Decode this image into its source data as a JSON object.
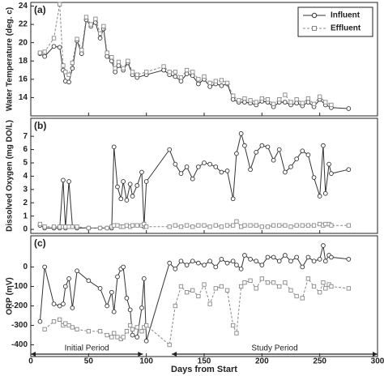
{
  "chart_data": [
    {
      "type": "line",
      "label": "(a)",
      "ylabel": "Water Temperature (deg. c)",
      "legend": "upper right",
      "x": [
        8,
        12,
        20,
        25,
        28,
        30,
        33,
        36,
        40,
        44,
        48,
        52,
        56,
        60,
        63,
        66,
        70,
        73,
        76,
        80,
        84,
        88,
        92,
        100,
        115,
        120,
        125,
        130,
        135,
        140,
        145,
        150,
        155,
        160,
        165,
        170,
        175,
        180,
        185,
        190,
        195,
        200,
        205,
        210,
        215,
        220,
        225,
        230,
        235,
        240,
        245,
        250,
        255,
        260,
        275
      ],
      "series": [
        {
          "name": "Influent",
          "color": "#333333",
          "marker": "circle",
          "dashed": false,
          "values": [
            18.8,
            18.5,
            19.6,
            19.5,
            17,
            15.8,
            15.7,
            17.2,
            20.2,
            18.8,
            22.5,
            21.8,
            22.2,
            20.5,
            21.5,
            18.5,
            18,
            16.8,
            17.5,
            17,
            17.8,
            16.5,
            16.2,
            16.5,
            17,
            16.5,
            16.3,
            15.8,
            16.6,
            16.4,
            15.5,
            16,
            15.2,
            15.5,
            15.3,
            15.5,
            13.8,
            13.5,
            13.5,
            13.4,
            13.2,
            13.6,
            13.5,
            13,
            13.5,
            13.5,
            13.2,
            13.4,
            13.1,
            13.5,
            13,
            13.8,
            13.2,
            12.9,
            12.8
          ]
        },
        {
          "name": "Effluent",
          "color": "#888888",
          "marker": "square",
          "dashed": true,
          "values": [
            18.9,
            19,
            20.5,
            24.2,
            17.5,
            16.8,
            16.5,
            17.8,
            20.4,
            19.2,
            22.8,
            22,
            22.6,
            21,
            21.8,
            18.9,
            18.4,
            17.2,
            17.9,
            17.2,
            18,
            16.8,
            16.5,
            16.8,
            17.4,
            16.8,
            16.8,
            16.2,
            17,
            16.8,
            16,
            16.3,
            15.6,
            15.8,
            15.9,
            15.6,
            14.2,
            13.7,
            13.9,
            13.7,
            13.5,
            13.9,
            13.8,
            13.3,
            13.8,
            14.3,
            13.5,
            13.8,
            13.4,
            13.9,
            13.3,
            14.1,
            13.5,
            13.2,
            null
          ]
        }
      ],
      "xlim": [
        0,
        300
      ],
      "xticks": [
        0,
        50,
        100,
        150,
        200,
        250,
        300
      ],
      "ylim": [
        12,
        24.4
      ],
      "yticks": [
        14,
        16,
        18,
        20,
        22,
        24
      ]
    },
    {
      "type": "line",
      "label": "(b)",
      "ylabel": "Dissolved Oxygen (mg DO/L)",
      "x": [
        8,
        12,
        20,
        25,
        28,
        30,
        33,
        36,
        40,
        50,
        60,
        66,
        70,
        72,
        75,
        78,
        80,
        83,
        86,
        88,
        92,
        96,
        98,
        100,
        120,
        125,
        130,
        135,
        140,
        145,
        150,
        155,
        160,
        165,
        170,
        175,
        178,
        182,
        185,
        190,
        195,
        200,
        205,
        210,
        215,
        220,
        225,
        230,
        235,
        240,
        245,
        250,
        253,
        255,
        258,
        260,
        275
      ],
      "series": [
        {
          "name": "Influent",
          "color": "#333333",
          "marker": "circle",
          "dashed": false,
          "values": [
            0.3,
            0.1,
            0.1,
            0.1,
            3.7,
            0.1,
            3.6,
            0.2,
            0.1,
            0.1,
            0.1,
            0.1,
            0.1,
            6.2,
            3.2,
            2.3,
            3.6,
            2.2,
            3.4,
            2.5,
            3.3,
            4.3,
            0.2,
            3.6,
            6.0,
            4.9,
            4.2,
            4.7,
            3.8,
            4.7,
            5.0,
            4.9,
            4.7,
            4.3,
            4.4,
            2.3,
            5.7,
            7.2,
            6.3,
            4.5,
            5.8,
            6.3,
            6.2,
            5.2,
            6.0,
            4.3,
            4.7,
            5.3,
            5.9,
            5.6,
            3.9,
            2.5,
            6.3,
            2.7,
            4.9,
            4.2,
            4.5
          ]
        },
        {
          "name": "Effluent",
          "color": "#888888",
          "marker": "square",
          "dashed": true,
          "values": [
            0.4,
            0.2,
            0.2,
            0.2,
            0.2,
            0.2,
            0.2,
            0.2,
            0.2,
            0.1,
            0.1,
            0.1,
            0.2,
            0.3,
            0.3,
            0.2,
            0.2,
            0.3,
            0.2,
            0.3,
            0.3,
            0.3,
            0.4,
            0.2,
            0.2,
            0.3,
            0.2,
            0.3,
            0.2,
            0.3,
            0.3,
            0.2,
            0.3,
            0.2,
            0.3,
            0.3,
            0.6,
            0.2,
            0.3,
            0.3,
            0.3,
            0.2,
            0.2,
            0.3,
            0.3,
            0.3,
            0.2,
            0.3,
            0.3,
            0.3,
            0.3,
            0.4,
            0.3,
            0.4,
            0.4,
            0.3,
            0.3
          ]
        }
      ],
      "xlim": [
        0,
        300
      ],
      "xticks": [
        0,
        50,
        100,
        150,
        200,
        250,
        300
      ],
      "ylim": [
        -0.3,
        8.35
      ],
      "yticks": [
        0,
        1,
        2,
        3,
        4,
        5,
        6,
        7
      ]
    },
    {
      "type": "line",
      "label": "(c)",
      "ylabel": "ORP (mV)",
      "xlabel": "Days from  Start",
      "x": [
        8,
        12,
        20,
        25,
        28,
        30,
        33,
        36,
        40,
        50,
        60,
        66,
        70,
        72,
        75,
        78,
        80,
        83,
        86,
        88,
        92,
        96,
        98,
        100,
        120,
        125,
        130,
        135,
        140,
        145,
        150,
        155,
        160,
        165,
        170,
        175,
        178,
        182,
        185,
        190,
        195,
        200,
        205,
        210,
        215,
        220,
        225,
        230,
        235,
        240,
        245,
        250,
        253,
        255,
        258,
        260,
        275
      ],
      "series": [
        {
          "name": "Influent",
          "color": "#333333",
          "marker": "circle",
          "dashed": false,
          "values": [
            -280,
            0,
            -190,
            -200,
            -190,
            -100,
            -60,
            -210,
            -20,
            -70,
            -110,
            -200,
            -130,
            -230,
            -50,
            -10,
            0,
            -160,
            -220,
            -350,
            -360,
            -210,
            -60,
            -380,
            20,
            -10,
            30,
            10,
            30,
            20,
            10,
            30,
            0,
            40,
            20,
            30,
            10,
            -10,
            60,
            40,
            30,
            10,
            50,
            50,
            30,
            60,
            30,
            50,
            0,
            50,
            30,
            40,
            110,
            30,
            60,
            50,
            40
          ]
        },
        {
          "name": "Effluent",
          "color": "#888888",
          "marker": "square",
          "dashed": true,
          "values": [
            null,
            -320,
            -280,
            -270,
            -300,
            -290,
            -300,
            -310,
            -320,
            -330,
            -330,
            -350,
            -360,
            -340,
            -360,
            -370,
            -360,
            -330,
            -300,
            -320,
            -310,
            -330,
            -310,
            -300,
            -400,
            -200,
            -100,
            -130,
            -120,
            -150,
            -90,
            -190,
            -110,
            -100,
            -120,
            -300,
            -340,
            -100,
            -80,
            -70,
            -110,
            -60,
            -80,
            -80,
            -100,
            -80,
            -120,
            -150,
            -160,
            -60,
            -100,
            -130,
            -80,
            -110,
            -90,
            -100,
            -110
          ]
        }
      ],
      "annotations": [
        {
          "text": "Initial Period",
          "x": [
            0,
            97
          ]
        },
        {
          "text": "Study Period",
          "x": [
            122,
            300
          ]
        }
      ],
      "xlim": [
        0,
        300
      ],
      "xticks": [
        0,
        50,
        100,
        150,
        200,
        250,
        300
      ],
      "ylim": [
        -460,
        160
      ],
      "yticks": [
        -400,
        -300,
        -200,
        -100,
        0
      ]
    }
  ]
}
